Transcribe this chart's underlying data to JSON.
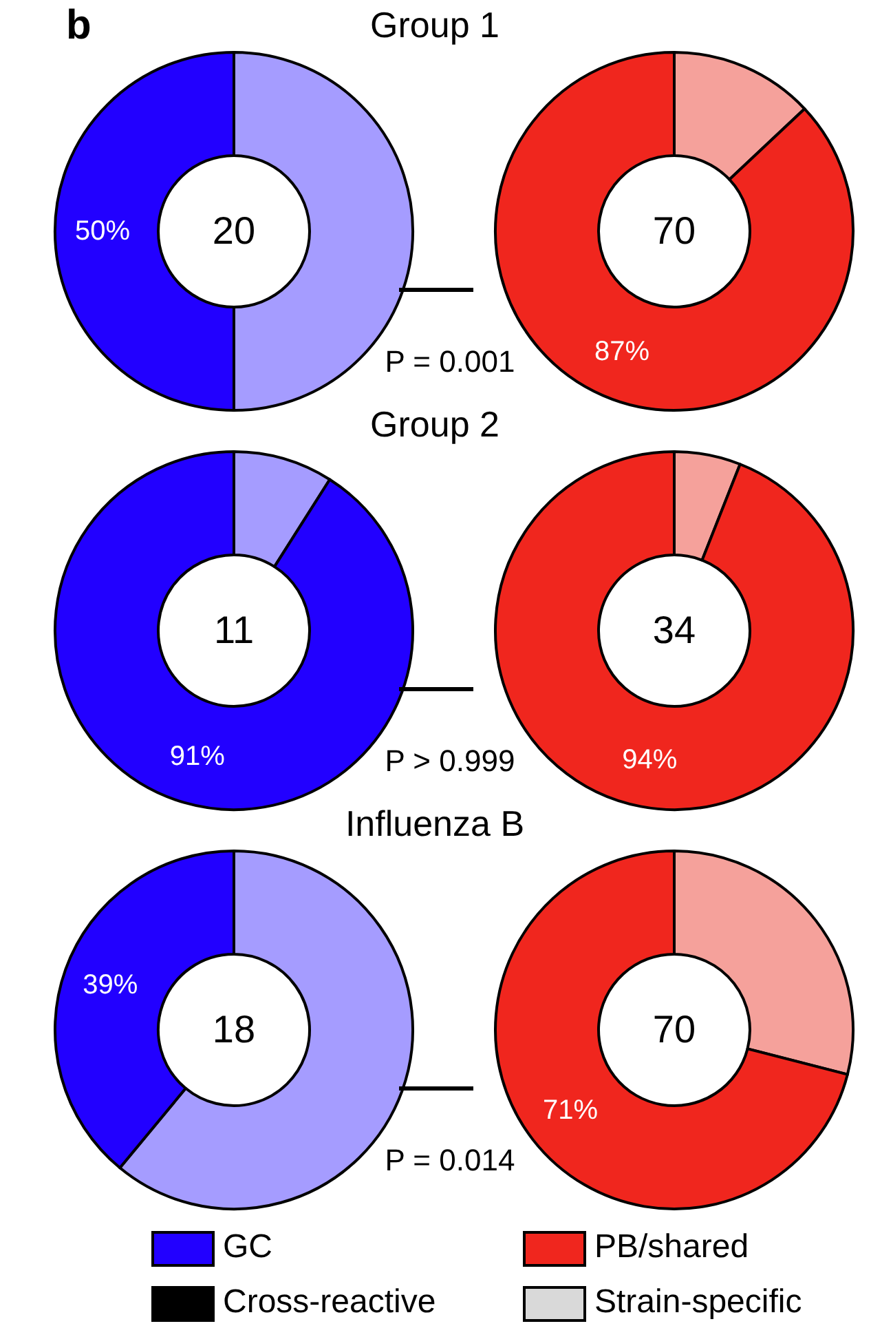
{
  "chart_data": [
    {
      "type": "donut",
      "title": "Group 1",
      "categories": [
        null,
        null
      ],
      "values": [
        50,
        50
      ],
      "colors": [
        "#a59cff",
        "#2200ff"
      ],
      "value_labels": [
        null,
        "50%"
      ],
      "annotations": [
        "20",
        "b"
      ]
    },
    {
      "type": "donut",
      "categories": [
        null,
        null
      ],
      "values": [
        13,
        87
      ],
      "colors": [
        "#f5a19b",
        "#f0261e"
      ],
      "value_labels": [
        null,
        "87%"
      ],
      "annotations": [
        "70",
        "P = 0.001"
      ]
    },
    {
      "type": "donut",
      "title": "Group 2",
      "categories": [
        null,
        null
      ],
      "values": [
        9,
        91
      ],
      "colors": [
        "#a59cff",
        "#2200ff"
      ],
      "value_labels": [
        null,
        "91%"
      ],
      "annotations": [
        "11"
      ]
    },
    {
      "type": "donut",
      "categories": [
        null,
        null
      ],
      "values": [
        6,
        94
      ],
      "colors": [
        "#f5a19b",
        "#f0261e"
      ],
      "value_labels": [
        null,
        "94%"
      ],
      "annotations": [
        "34",
        "P > 0.999"
      ]
    },
    {
      "type": "donut",
      "title": "Influenza B",
      "categories": [
        null,
        null
      ],
      "values": [
        61,
        39
      ],
      "colors": [
        "#a59cff",
        "#2200ff"
      ],
      "value_labels": [
        null,
        "39%"
      ],
      "annotations": [
        "18"
      ]
    },
    {
      "type": "donut",
      "categories": [
        null,
        null
      ],
      "values": [
        29,
        71
      ],
      "colors": [
        "#f5a19b",
        "#f0261e"
      ],
      "value_labels": [
        null,
        "71%"
      ],
      "annotations": [
        "70",
        "P = 0.014"
      ]
    },
    {
      "type": "other",
      "categories": [
        "GC",
        "PB/shared",
        "Cross-reactive",
        "Strain-specific"
      ],
      "colors": [
        "#2200ff",
        "#f0261e",
        "#000000",
        "#d9d9d9"
      ]
    }
  ]
}
